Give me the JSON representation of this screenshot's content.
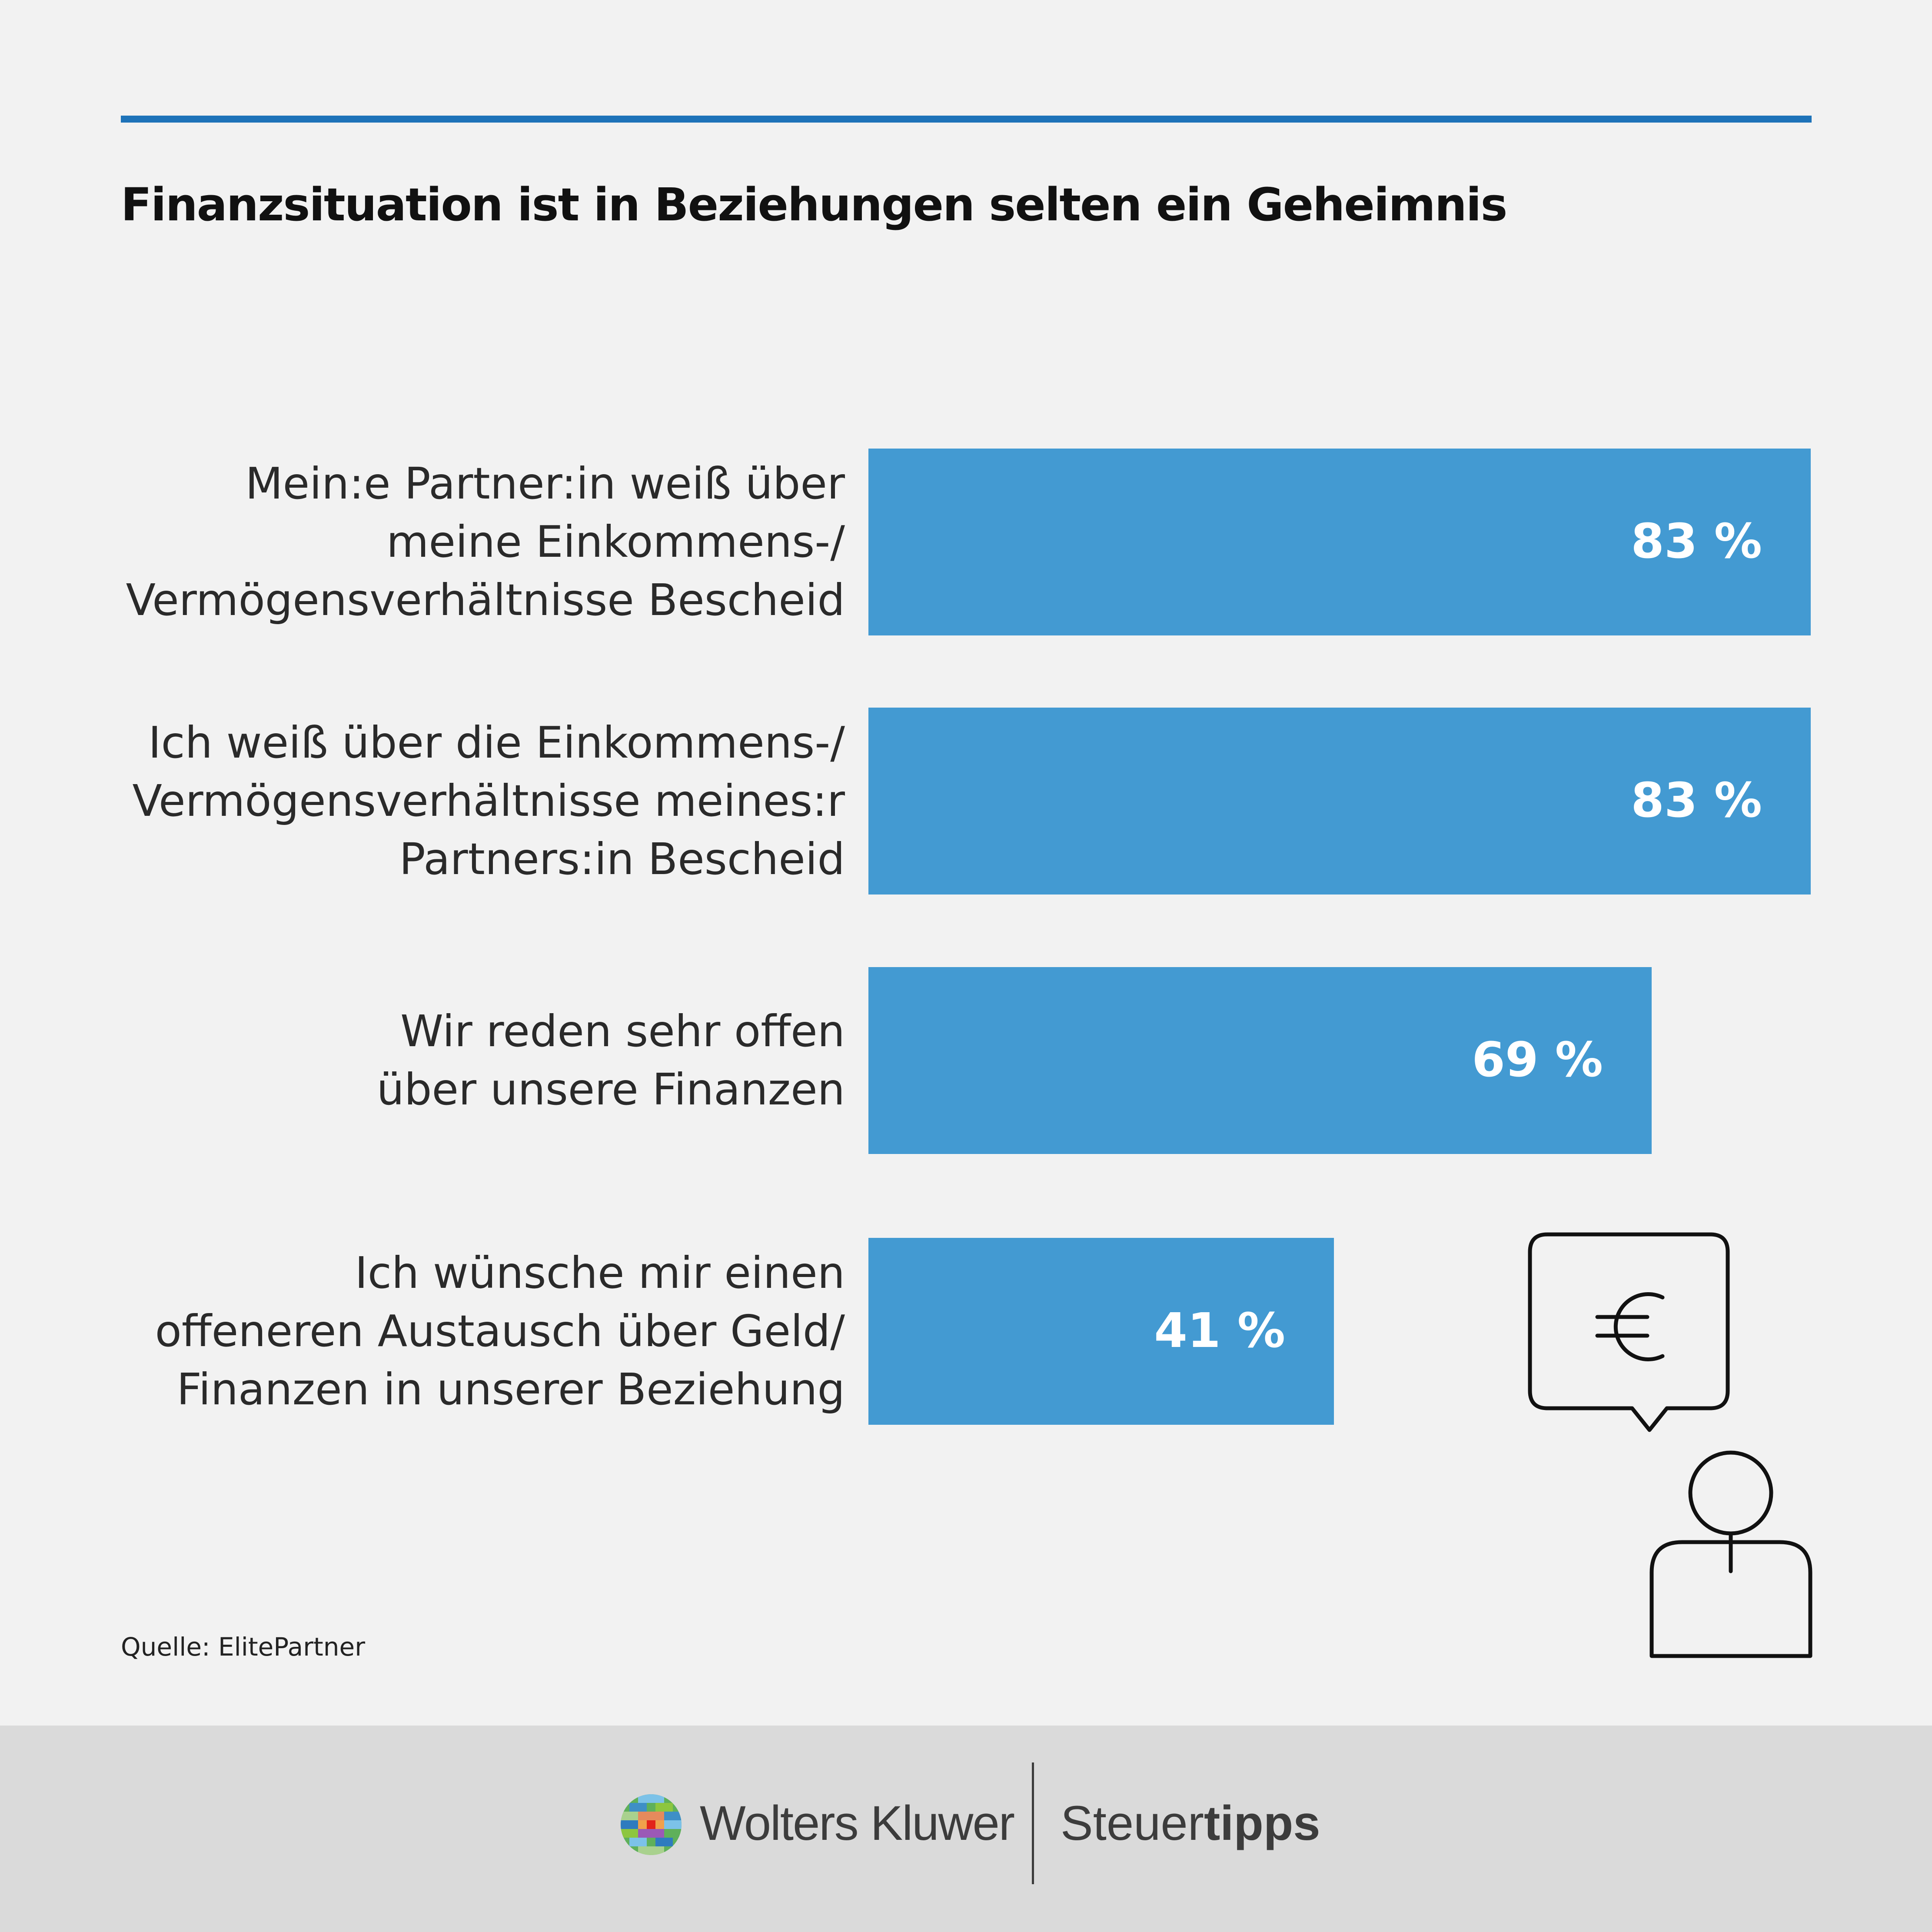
{
  "title": "Finanzsituation ist in Beziehungen selten ein Geheimnis",
  "chart_data": {
    "type": "bar",
    "orientation": "horizontal",
    "title": "Finanzsituation ist in Beziehungen selten ein Geheimnis",
    "categories": [
      "Mein:e Partner:in weiß über\nmeine Einkommens-/\nVermögensverhältnisse Bescheid",
      "Ich weiß über die Einkommens-/\nVermögensverhältnisse meines:r\nPartners:in Bescheid",
      "Wir reden sehr offen\nüber unsere Finanzen",
      "Ich wünsche mir einen\noffeneren Austausch über Geld/\nFinanzen in unserer Beziehung"
    ],
    "values": [
      83,
      83,
      69,
      41
    ],
    "value_labels": [
      "83 %",
      "83 %",
      "69 %",
      "41 %"
    ],
    "unit": "%",
    "xlim": [
      0,
      83
    ],
    "grid": false,
    "bar_color": "#439ad2"
  },
  "source": "Quelle: ElitePartner",
  "icons": {
    "illustration": "person-with-euro-speech-bubble-icon",
    "logo": "wolters-kluwer-logo"
  },
  "colors": {
    "accent": "#1e73b9",
    "bar": "#439ad2",
    "background": "#f2f2f2",
    "footer": "#dadada"
  },
  "footer": {
    "brand_primary": "Wolters Kluwer",
    "brand_secondary_light": "Steuer",
    "brand_secondary_bold": "tipps"
  }
}
